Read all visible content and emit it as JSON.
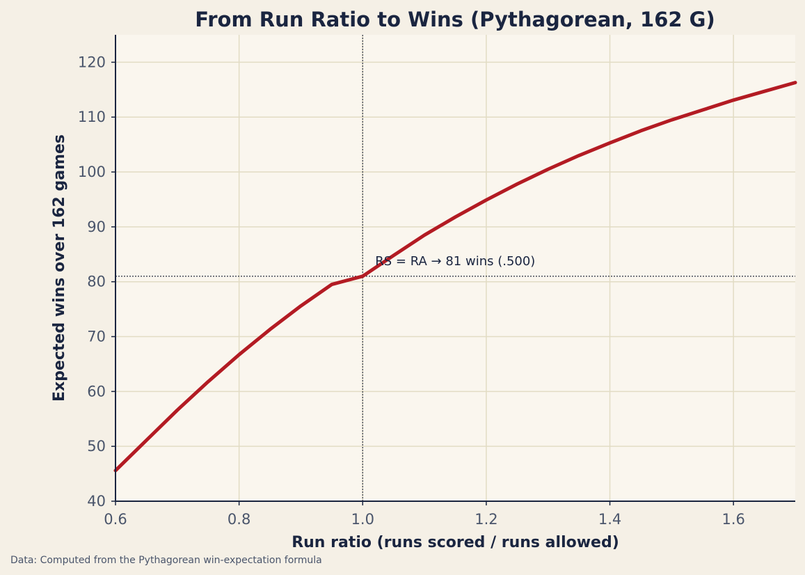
{
  "chart_data": {
    "type": "line",
    "title": "From Run Ratio to Wins (Pythagorean, 162 G)",
    "xlabel": "Run ratio  (runs scored / runs allowed)",
    "ylabel": "Expected wins over 162 games",
    "xlim": [
      0.6,
      1.7
    ],
    "ylim": [
      40,
      125
    ],
    "x_ticks": [
      "0.6",
      "0.8",
      "1.0",
      "1.2",
      "1.4",
      "1.6"
    ],
    "y_ticks": [
      "40",
      "50",
      "60",
      "70",
      "80",
      "90",
      "100",
      "110",
      "120"
    ],
    "grid": true,
    "series": [
      {
        "color": "#b31b23",
        "x": [
          0.6,
          0.65,
          0.7,
          0.75,
          0.8,
          0.85,
          0.9,
          0.95,
          1.0,
          1.05,
          1.1,
          1.15,
          1.2,
          1.25,
          1.3,
          1.35,
          1.4,
          1.45,
          1.5,
          1.55,
          1.6,
          1.65,
          1.7
        ],
        "y": [
          45.6,
          51.1,
          56.6,
          61.8,
          66.7,
          71.3,
          75.6,
          79.5,
          81.0,
          84.8,
          88.5,
          91.8,
          94.9,
          97.8,
          100.5,
          103.0,
          105.3,
          107.5,
          109.5,
          111.3,
          113.1,
          114.7,
          116.3
        ]
      }
    ],
    "reference_lines": [
      {
        "axis": "x",
        "value": 1.0
      },
      {
        "axis": "y",
        "value": 81
      }
    ],
    "annotation": "RS = RA → 81 wins (.500)",
    "source": "Data: Computed from the Pythagorean win-expectation formula",
    "colors": {
      "background": "#f5f0e6",
      "plot_background": "#faf6ee",
      "grid": "#e2dcc4",
      "axis": "#1a2540",
      "line": "#b31b23"
    }
  }
}
